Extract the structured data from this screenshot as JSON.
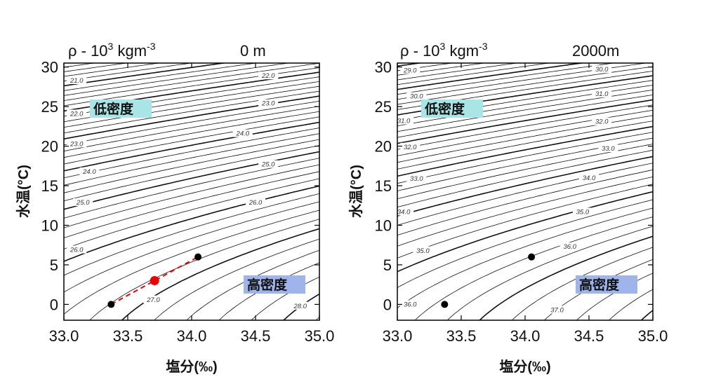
{
  "chart_data": [
    {
      "type": "contour",
      "header_left": "ρ - 10",
      "header_sup1": "3",
      "header_unit": " kgm",
      "header_sup2": "-3",
      "depth": "0 m",
      "xlabel": "塩分(‰)",
      "ylabel": "水温(°C)",
      "xlim": [
        33.0,
        35.0
      ],
      "ylim": [
        -2,
        30.5
      ],
      "x_ticks": [
        "33.0",
        "33.5",
        "34.0",
        "34.5",
        "35.0"
      ],
      "y_ticks": [
        "0",
        "5",
        "10",
        "15",
        "20",
        "25",
        "30"
      ],
      "low_density_label": "低密度",
      "high_density_label": "高密度",
      "low_label_color": "#a9e4e6",
      "high_label_color": "#9fb4ea",
      "contour_labels": [
        {
          "text": "21.0",
          "x": 33.1,
          "y": 28.2
        },
        {
          "text": "22.0",
          "x": 33.1,
          "y": 24.0
        },
        {
          "text": "23.0",
          "x": 33.1,
          "y": 20.2
        },
        {
          "text": "24.0",
          "x": 33.2,
          "y": 16.7
        },
        {
          "text": "25.0",
          "x": 33.15,
          "y": 12.8
        },
        {
          "text": "26.0",
          "x": 33.1,
          "y": 6.8
        },
        {
          "text": "22.0",
          "x": 34.6,
          "y": 28.8
        },
        {
          "text": "23.0",
          "x": 34.6,
          "y": 25.3
        },
        {
          "text": "24.0",
          "x": 34.4,
          "y": 21.5
        },
        {
          "text": "25.0",
          "x": 34.6,
          "y": 17.6
        },
        {
          "text": "26.0",
          "x": 34.5,
          "y": 12.8
        },
        {
          "text": "27.0",
          "x": 33.7,
          "y": 0.5
        },
        {
          "text": "28.0",
          "x": 34.85,
          "y": -0.3
        }
      ],
      "points": [
        {
          "x": 33.37,
          "y": 0.0,
          "color": "#000000"
        },
        {
          "x": 34.05,
          "y": 6.0,
          "color": "#000000"
        },
        {
          "x": 33.71,
          "y": 3.0,
          "color": "#ee0000"
        }
      ],
      "mixing_line": {
        "from": [
          33.37,
          0.0
        ],
        "to": [
          34.05,
          6.0
        ],
        "color": "#ee0000"
      }
    },
    {
      "type": "contour",
      "header_left": "ρ - 10",
      "header_sup1": "3",
      "header_unit": " kgm",
      "header_sup2": "-3",
      "depth": "2000m",
      "xlabel": "塩分(‰)",
      "ylabel": "水温(°C)",
      "xlim": [
        33.0,
        35.0
      ],
      "ylim": [
        -2,
        30.5
      ],
      "x_ticks": [
        "33.0",
        "33.5",
        "34.0",
        "34.5",
        "35.0"
      ],
      "y_ticks": [
        "0",
        "5",
        "10",
        "15",
        "20",
        "25",
        "30"
      ],
      "low_density_label": "低密度",
      "high_density_label": "高密度",
      "low_label_color": "#a9e4e6",
      "high_label_color": "#9fb4ea",
      "contour_labels": [
        {
          "text": "29.0",
          "x": 33.1,
          "y": 29.5
        },
        {
          "text": "30.0",
          "x": 33.15,
          "y": 26.2
        },
        {
          "text": "31.0",
          "x": 33.05,
          "y": 23.1
        },
        {
          "text": "32.0",
          "x": 33.1,
          "y": 19.8
        },
        {
          "text": "33.0",
          "x": 33.15,
          "y": 15.8
        },
        {
          "text": "34.0",
          "x": 33.05,
          "y": 11.6
        },
        {
          "text": "35.0",
          "x": 33.2,
          "y": 6.7
        },
        {
          "text": "36.0",
          "x": 33.1,
          "y": -0.1
        },
        {
          "text": "30.0",
          "x": 34.6,
          "y": 29.6
        },
        {
          "text": "31.0",
          "x": 34.6,
          "y": 26.5
        },
        {
          "text": "32.0",
          "x": 34.6,
          "y": 23.0
        },
        {
          "text": "33.0",
          "x": 34.65,
          "y": 19.6
        },
        {
          "text": "34.0",
          "x": 34.5,
          "y": 15.9
        },
        {
          "text": "35.0",
          "x": 34.45,
          "y": 11.6
        },
        {
          "text": "36.0",
          "x": 34.35,
          "y": 7.2
        },
        {
          "text": "37.0",
          "x": 34.25,
          "y": -0.8
        }
      ],
      "points": [
        {
          "x": 33.37,
          "y": 0.0,
          "color": "#000000"
        },
        {
          "x": 34.05,
          "y": 6.0,
          "color": "#000000"
        }
      ]
    }
  ]
}
